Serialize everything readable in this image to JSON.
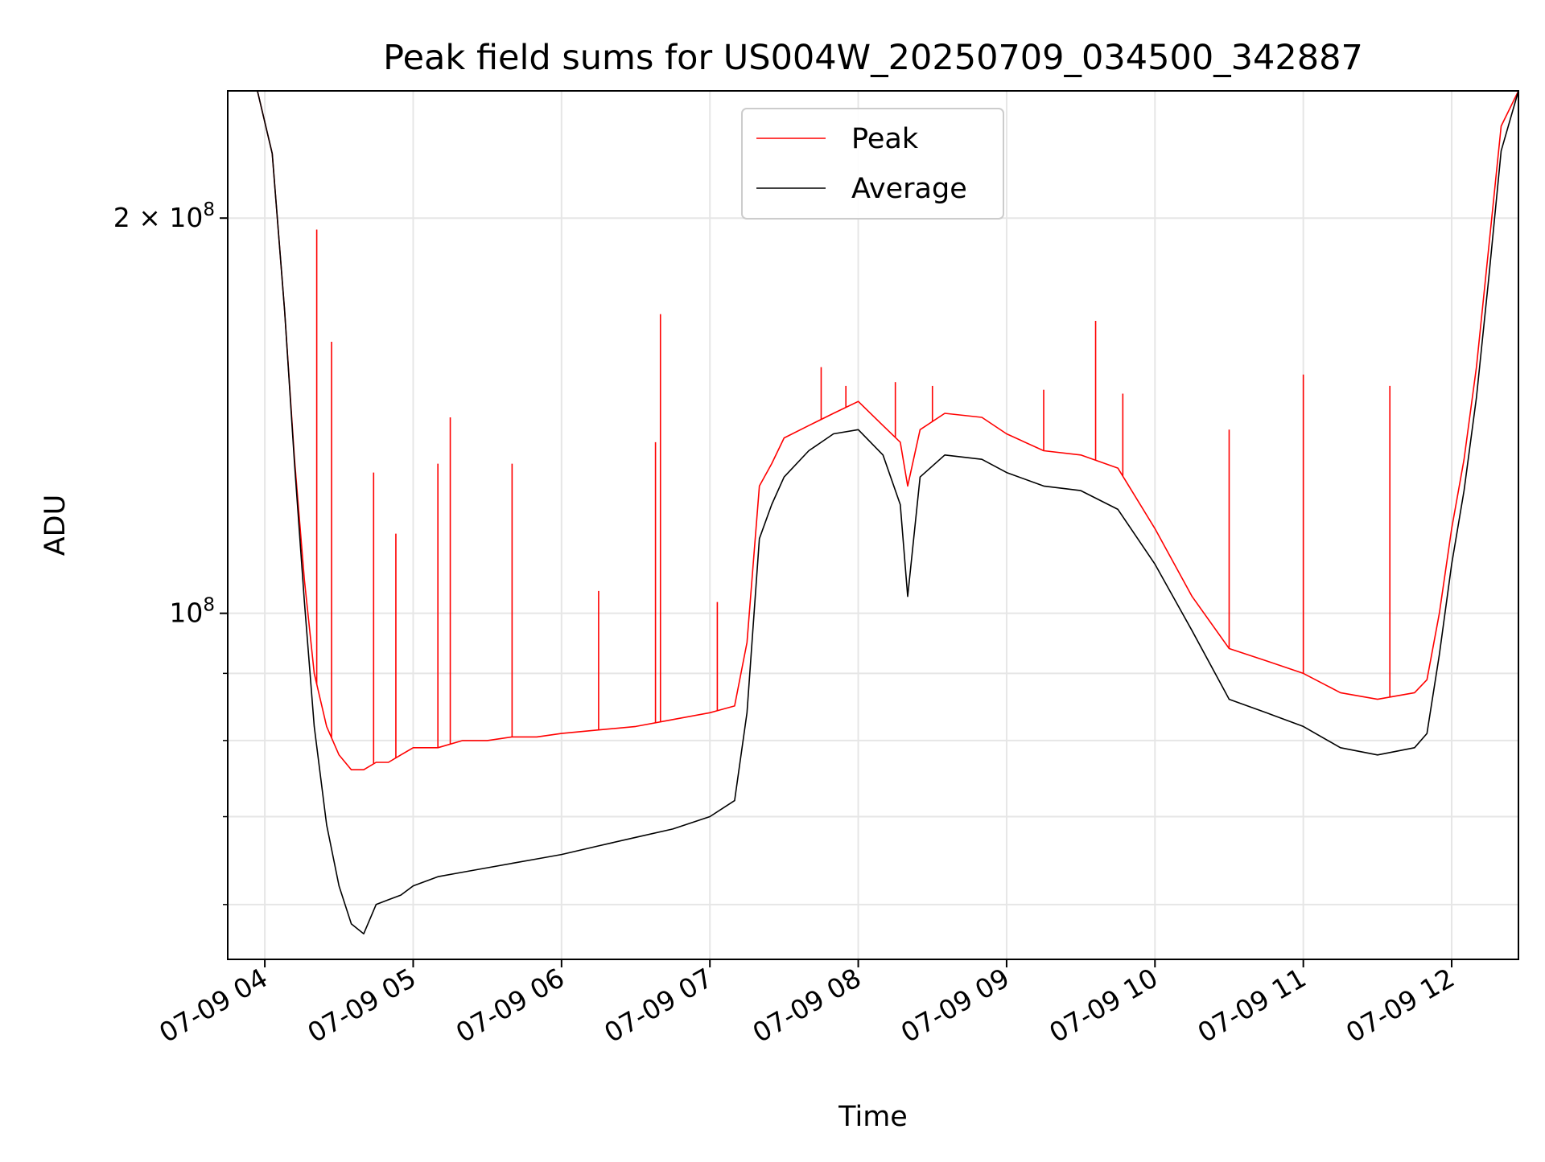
{
  "chart_data": {
    "type": "line",
    "title": "Peak field sums for US004W_20250709_034500_342887",
    "xlabel": "Time",
    "ylabel": "ADU",
    "yscale": "log",
    "grid": true,
    "legend_position": "top-center",
    "xlim": [
      "2025-07-09 03:45",
      "2025-07-09 12:27"
    ],
    "ylim": [
      54500000,
      250000000
    ],
    "x_ticks": [
      {
        "value": "2025-07-09 04:00",
        "label": "07-09 04"
      },
      {
        "value": "2025-07-09 05:00",
        "label": "07-09 05"
      },
      {
        "value": "2025-07-09 06:00",
        "label": "07-09 06"
      },
      {
        "value": "2025-07-09 07:00",
        "label": "07-09 07"
      },
      {
        "value": "2025-07-09 08:00",
        "label": "07-09 08"
      },
      {
        "value": "2025-07-09 09:00",
        "label": "07-09 09"
      },
      {
        "value": "2025-07-09 10:00",
        "label": "07-09 10"
      },
      {
        "value": "2025-07-09 11:00",
        "label": "07-09 11"
      },
      {
        "value": "2025-07-09 12:00",
        "label": "07-09 12"
      }
    ],
    "y_ticks": [
      {
        "value": 100000000,
        "base": "10",
        "exp": "8",
        "coef": ""
      },
      {
        "value": 200000000,
        "base": "10",
        "exp": "8",
        "coef": "2 × "
      }
    ],
    "y_minor_ticks": [
      60000000,
      70000000,
      80000000,
      90000000
    ],
    "series": [
      {
        "name": "Peak",
        "color": "#ff0000",
        "x": [
          "2025-07-09 03:45",
          "2025-07-09 03:50",
          "2025-07-09 03:57",
          "2025-07-09 04:03",
          "2025-07-09 04:08",
          "2025-07-09 04:12",
          "2025-07-09 04:16",
          "2025-07-09 04:20",
          "2025-07-09 04:25",
          "2025-07-09 04:30",
          "2025-07-09 04:35",
          "2025-07-09 04:40",
          "2025-07-09 04:45",
          "2025-07-09 04:50",
          "2025-07-09 04:55",
          "2025-07-09 05:00",
          "2025-07-09 05:10",
          "2025-07-09 05:20",
          "2025-07-09 05:30",
          "2025-07-09 05:40",
          "2025-07-09 05:50",
          "2025-07-09 06:00",
          "2025-07-09 06:15",
          "2025-07-09 06:30",
          "2025-07-09 06:45",
          "2025-07-09 07:00",
          "2025-07-09 07:10",
          "2025-07-09 07:15",
          "2025-07-09 07:20",
          "2025-07-09 07:25",
          "2025-07-09 07:30",
          "2025-07-09 07:40",
          "2025-07-09 07:50",
          "2025-07-09 08:00",
          "2025-07-09 08:10",
          "2025-07-09 08:17",
          "2025-07-09 08:20",
          "2025-07-09 08:25",
          "2025-07-09 08:35",
          "2025-07-09 08:50",
          "2025-07-09 09:00",
          "2025-07-09 09:15",
          "2025-07-09 09:30",
          "2025-07-09 09:45",
          "2025-07-09 10:00",
          "2025-07-09 10:15",
          "2025-07-09 10:30",
          "2025-07-09 10:45",
          "2025-07-09 11:00",
          "2025-07-09 11:15",
          "2025-07-09 11:30",
          "2025-07-09 11:45",
          "2025-07-09 11:50",
          "2025-07-09 11:55",
          "2025-07-09 12:00",
          "2025-07-09 12:05",
          "2025-07-09 12:10",
          "2025-07-09 12:15",
          "2025-07-09 12:20",
          "2025-07-09 12:27"
        ],
        "y": [
          250000000,
          250000000,
          250000000,
          224000000,
          170000000,
          131000000,
          106000000,
          90000000,
          82000000,
          78000000,
          76000000,
          76000000,
          77000000,
          77000000,
          78000000,
          79000000,
          79000000,
          80000000,
          80000000,
          80500000,
          80500000,
          81000000,
          81500000,
          82000000,
          83000000,
          84000000,
          85000000,
          95000000,
          125000000,
          130000000,
          136000000,
          139000000,
          142000000,
          145000000,
          139000000,
          135000000,
          125000000,
          138000000,
          142000000,
          141000000,
          137000000,
          133000000,
          132000000,
          129000000,
          116000000,
          103000000,
          94000000,
          92000000,
          90000000,
          87000000,
          86000000,
          87000000,
          89000000,
          100000000,
          116000000,
          131000000,
          154000000,
          190000000,
          235000000,
          250000000
        ],
        "spikes": [
          {
            "x": "2025-07-09 04:21",
            "y": 196000000
          },
          {
            "x": "2025-07-09 04:27",
            "y": 161000000
          },
          {
            "x": "2025-07-09 04:44",
            "y": 128000000
          },
          {
            "x": "2025-07-09 04:53",
            "y": 115000000
          },
          {
            "x": "2025-07-09 05:10",
            "y": 130000000
          },
          {
            "x": "2025-07-09 05:15",
            "y": 141000000
          },
          {
            "x": "2025-07-09 05:40",
            "y": 130000000
          },
          {
            "x": "2025-07-09 06:15",
            "y": 104000000
          },
          {
            "x": "2025-07-09 06:38",
            "y": 135000000
          },
          {
            "x": "2025-07-09 06:40",
            "y": 169000000
          },
          {
            "x": "2025-07-09 07:03",
            "y": 102000000
          },
          {
            "x": "2025-07-09 07:45",
            "y": 154000000
          },
          {
            "x": "2025-07-09 07:55",
            "y": 149000000
          },
          {
            "x": "2025-07-09 08:15",
            "y": 150000000
          },
          {
            "x": "2025-07-09 08:30",
            "y": 149000000
          },
          {
            "x": "2025-07-09 09:15",
            "y": 148000000
          },
          {
            "x": "2025-07-09 09:36",
            "y": 167000000
          },
          {
            "x": "2025-07-09 09:47",
            "y": 147000000
          },
          {
            "x": "2025-07-09 10:30",
            "y": 138000000
          },
          {
            "x": "2025-07-09 11:00",
            "y": 152000000
          },
          {
            "x": "2025-07-09 11:35",
            "y": 149000000
          }
        ]
      },
      {
        "name": "Average",
        "color": "#000000",
        "x": [
          "2025-07-09 03:45",
          "2025-07-09 03:50",
          "2025-07-09 03:57",
          "2025-07-09 04:03",
          "2025-07-09 04:08",
          "2025-07-09 04:12",
          "2025-07-09 04:16",
          "2025-07-09 04:20",
          "2025-07-09 04:25",
          "2025-07-09 04:30",
          "2025-07-09 04:35",
          "2025-07-09 04:40",
          "2025-07-09 04:45",
          "2025-07-09 04:50",
          "2025-07-09 04:55",
          "2025-07-09 05:00",
          "2025-07-09 05:10",
          "2025-07-09 05:20",
          "2025-07-09 05:30",
          "2025-07-09 05:40",
          "2025-07-09 05:50",
          "2025-07-09 06:00",
          "2025-07-09 06:15",
          "2025-07-09 06:30",
          "2025-07-09 06:45",
          "2025-07-09 07:00",
          "2025-07-09 07:10",
          "2025-07-09 07:15",
          "2025-07-09 07:20",
          "2025-07-09 07:25",
          "2025-07-09 07:30",
          "2025-07-09 07:40",
          "2025-07-09 07:50",
          "2025-07-09 08:00",
          "2025-07-09 08:10",
          "2025-07-09 08:17",
          "2025-07-09 08:20",
          "2025-07-09 08:25",
          "2025-07-09 08:35",
          "2025-07-09 08:50",
          "2025-07-09 09:00",
          "2025-07-09 09:15",
          "2025-07-09 09:30",
          "2025-07-09 09:45",
          "2025-07-09 10:00",
          "2025-07-09 10:15",
          "2025-07-09 10:30",
          "2025-07-09 10:45",
          "2025-07-09 11:00",
          "2025-07-09 11:15",
          "2025-07-09 11:30",
          "2025-07-09 11:45",
          "2025-07-09 11:50",
          "2025-07-09 11:55",
          "2025-07-09 12:00",
          "2025-07-09 12:05",
          "2025-07-09 12:10",
          "2025-07-09 12:15",
          "2025-07-09 12:20",
          "2025-07-09 12:27"
        ],
        "y": [
          250000000,
          250000000,
          250000000,
          224000000,
          170000000,
          130000000,
          102000000,
          82000000,
          69000000,
          62000000,
          58000000,
          57000000,
          60000000,
          60500000,
          61000000,
          62000000,
          63000000,
          63500000,
          64000000,
          64500000,
          65000000,
          65500000,
          66500000,
          67500000,
          68500000,
          70000000,
          72000000,
          84000000,
          114000000,
          121000000,
          127000000,
          133000000,
          137000000,
          138000000,
          132000000,
          121000000,
          103000000,
          127000000,
          132000000,
          131000000,
          128000000,
          125000000,
          124000000,
          120000000,
          109000000,
          97000000,
          86000000,
          84000000,
          82000000,
          79000000,
          78000000,
          79000000,
          81000000,
          93000000,
          109000000,
          124000000,
          146000000,
          180000000,
          225000000,
          250000000
        ]
      }
    ]
  }
}
